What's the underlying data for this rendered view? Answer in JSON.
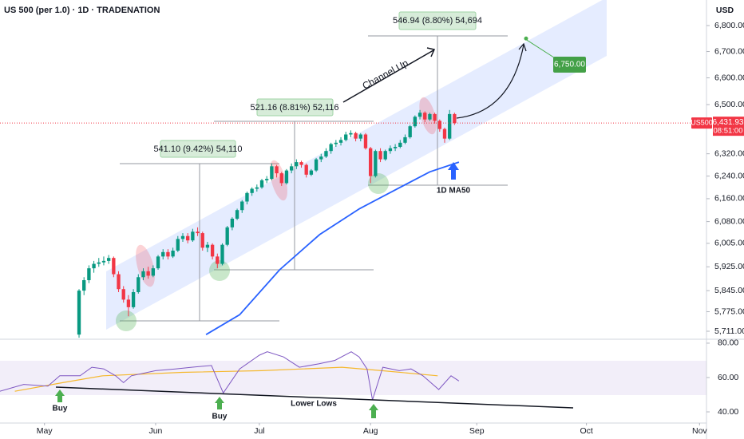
{
  "chart_data": {
    "type": "candlestick",
    "title": "US 500 (per 1.0) · 1D · TRADENATION",
    "currency": "USD",
    "symbol": "US500",
    "last_price": {
      "value": 6431.93,
      "label": "6,431.93"
    },
    "countdown": "08:51:00",
    "log_scale": true,
    "up_color": "#089981",
    "down_color": "#f23645",
    "candles": [
      [
        5700,
        5850,
        5690,
        5845
      ],
      [
        5845,
        5890,
        5830,
        5880
      ],
      [
        5880,
        5930,
        5870,
        5920
      ],
      [
        5920,
        5945,
        5905,
        5935
      ],
      [
        5935,
        5955,
        5925,
        5940
      ],
      [
        5940,
        5960,
        5930,
        5945
      ],
      [
        5945,
        5965,
        5935,
        5955
      ],
      [
        5955,
        5960,
        5890,
        5900
      ],
      [
        5900,
        5910,
        5840,
        5850
      ],
      [
        5850,
        5860,
        5805,
        5815
      ],
      [
        5815,
        5830,
        5760,
        5790
      ],
      [
        5790,
        5850,
        5785,
        5840
      ],
      [
        5840,
        5900,
        5835,
        5890
      ],
      [
        5890,
        5920,
        5880,
        5910
      ],
      [
        5910,
        5925,
        5885,
        5895
      ],
      [
        5895,
        5930,
        5890,
        5920
      ],
      [
        5920,
        5965,
        5915,
        5960
      ],
      [
        5960,
        5985,
        5950,
        5975
      ],
      [
        5975,
        5985,
        5950,
        5960
      ],
      [
        5960,
        5990,
        5955,
        5980
      ],
      [
        5980,
        6030,
        5975,
        6020
      ],
      [
        6020,
        6040,
        6010,
        6030
      ],
      [
        6030,
        6040,
        6005,
        6015
      ],
      [
        6015,
        6055,
        6010,
        6045
      ],
      [
        6045,
        6060,
        6030,
        6040
      ],
      [
        6040,
        6045,
        5980,
        5990
      ],
      [
        5990,
        6010,
        5975,
        6000
      ],
      [
        6000,
        6005,
        5950,
        5960
      ],
      [
        5960,
        5970,
        5920,
        5935
      ],
      [
        5935,
        6005,
        5930,
        6000
      ],
      [
        6000,
        6065,
        5995,
        6060
      ],
      [
        6060,
        6095,
        6050,
        6090
      ],
      [
        6090,
        6125,
        6085,
        6120
      ],
      [
        6120,
        6155,
        6110,
        6150
      ],
      [
        6150,
        6185,
        6140,
        6180
      ],
      [
        6180,
        6200,
        6170,
        6195
      ],
      [
        6195,
        6210,
        6185,
        6200
      ],
      [
        6200,
        6230,
        6195,
        6225
      ],
      [
        6225,
        6240,
        6215,
        6230
      ],
      [
        6230,
        6285,
        6225,
        6275
      ],
      [
        6275,
        6280,
        6235,
        6250
      ],
      [
        6250,
        6255,
        6205,
        6215
      ],
      [
        6215,
        6265,
        6210,
        6260
      ],
      [
        6260,
        6285,
        6250,
        6275
      ],
      [
        6275,
        6300,
        6265,
        6290
      ],
      [
        6290,
        6295,
        6270,
        6280
      ],
      [
        6280,
        6285,
        6235,
        6245
      ],
      [
        6245,
        6265,
        6240,
        6260
      ],
      [
        6260,
        6305,
        6255,
        6300
      ],
      [
        6300,
        6320,
        6290,
        6310
      ],
      [
        6310,
        6340,
        6305,
        6330
      ],
      [
        6330,
        6360,
        6320,
        6355
      ],
      [
        6355,
        6370,
        6345,
        6360
      ],
      [
        6360,
        6380,
        6350,
        6370
      ],
      [
        6370,
        6400,
        6365,
        6390
      ],
      [
        6390,
        6405,
        6380,
        6395
      ],
      [
        6395,
        6400,
        6365,
        6375
      ],
      [
        6375,
        6395,
        6365,
        6390
      ],
      [
        6390,
        6395,
        6335,
        6340
      ],
      [
        6340,
        6345,
        6215,
        6240
      ],
      [
        6240,
        6335,
        6235,
        6330
      ],
      [
        6330,
        6340,
        6290,
        6300
      ],
      [
        6300,
        6335,
        6295,
        6330
      ],
      [
        6330,
        6350,
        6320,
        6340
      ],
      [
        6340,
        6355,
        6330,
        6345
      ],
      [
        6345,
        6370,
        6340,
        6360
      ],
      [
        6360,
        6390,
        6355,
        6380
      ],
      [
        6380,
        6425,
        6375,
        6420
      ],
      [
        6420,
        6460,
        6415,
        6455
      ],
      [
        6455,
        6480,
        6445,
        6470
      ],
      [
        6470,
        6475,
        6435,
        6445
      ],
      [
        6445,
        6470,
        6440,
        6465
      ],
      [
        6465,
        6470,
        6430,
        6440
      ],
      [
        6440,
        6445,
        6400,
        6410
      ],
      [
        6410,
        6415,
        6360,
        6375
      ],
      [
        6375,
        6480,
        6370,
        6465
      ],
      [
        6465,
        6470,
        6425,
        6431.93
      ]
    ],
    "xlim": [
      -16,
      127
    ],
    "xticks": [
      {
        "value": -7,
        "label": "May"
      },
      {
        "value": 15.5,
        "label": "Jun"
      },
      {
        "value": 36.5,
        "label": "Jul"
      },
      {
        "value": 59,
        "label": "Aug"
      },
      {
        "value": 80.5,
        "label": "Sep"
      },
      {
        "value": 102.7,
        "label": "Oct"
      },
      {
        "value": 125.6,
        "label": "Nov"
      }
    ],
    "ylim": [
      5685,
      6900
    ],
    "yticks": [
      {
        "value": 6800,
        "label": "6,800.00"
      },
      {
        "value": 6700,
        "label": "6,700.00"
      },
      {
        "value": 6600,
        "label": "6,600.00"
      },
      {
        "value": 6500,
        "label": "6,500.00"
      },
      {
        "value": 6320,
        "label": "6,320.00"
      },
      {
        "value": 6240,
        "label": "6,240.00"
      },
      {
        "value": 6160,
        "label": "6,160.00"
      },
      {
        "value": 6080,
        "label": "6,080.00"
      },
      {
        "value": 6005,
        "label": "6,005.00"
      },
      {
        "value": 5925,
        "label": "5,925.00"
      },
      {
        "value": 5845,
        "label": "5,845.00"
      },
      {
        "value": 5775,
        "label": "5,775.00"
      },
      {
        "value": 5711,
        "label": "5,711.00"
      }
    ],
    "ma50": {
      "name": "1D MA50",
      "color": "#2962ff",
      "x": [
        25.7,
        32.5,
        40.6,
        48.7,
        56.8,
        65,
        71,
        76.9
      ],
      "values": [
        5700,
        5765,
        5915,
        6035,
        6125,
        6200,
        6255,
        6290
      ]
    },
    "rsi": {
      "ylim": [
        33.5,
        82.3
      ],
      "yticks": [
        {
          "value": 80,
          "label": "80.00"
        },
        {
          "value": 60,
          "label": "60.00"
        },
        {
          "value": 40,
          "label": "40.00"
        }
      ],
      "color": "#7e57c2",
      "x": [
        -16,
        -11.2,
        -6.3,
        -3.9,
        0.2,
        2.6,
        5,
        7.4,
        9,
        10.6,
        15.5,
        19.5,
        22.8,
        26.8,
        29.2,
        32.5,
        36.5,
        38.1,
        41.4,
        44.6,
        48.6,
        51.8,
        55.1,
        56.7,
        58.3,
        59.4,
        61.5,
        64.8,
        67.2,
        69.6,
        72.8,
        75.3,
        76.9
      ],
      "values": [
        52,
        56,
        55,
        61,
        61,
        66,
        65,
        61,
        57,
        61,
        64,
        65,
        66,
        67,
        51,
        65,
        73,
        75,
        72,
        66,
        68,
        70,
        75,
        72,
        65,
        47,
        66,
        64,
        65,
        61,
        53,
        61,
        58
      ],
      "ma_color": "#f5b82e",
      "ma_x": [
        -13,
        -3.3,
        4.8,
        20.9,
        37,
        53.2,
        61.3,
        72.6
      ],
      "ma_values": [
        52,
        57,
        61,
        63,
        64,
        66,
        64,
        61
      ]
    },
    "annotations": {
      "measures": [
        "541.10 (9.42%) 54,110",
        "521.16 (8.81%) 52,116",
        "546.94 (8.80%) 54,694"
      ],
      "target": {
        "value": 6750,
        "label": "6,750.00"
      },
      "channel": "Channel Up",
      "lower_lows": "Lower Lows",
      "buy": [
        "Buy",
        "Buy"
      ]
    }
  }
}
